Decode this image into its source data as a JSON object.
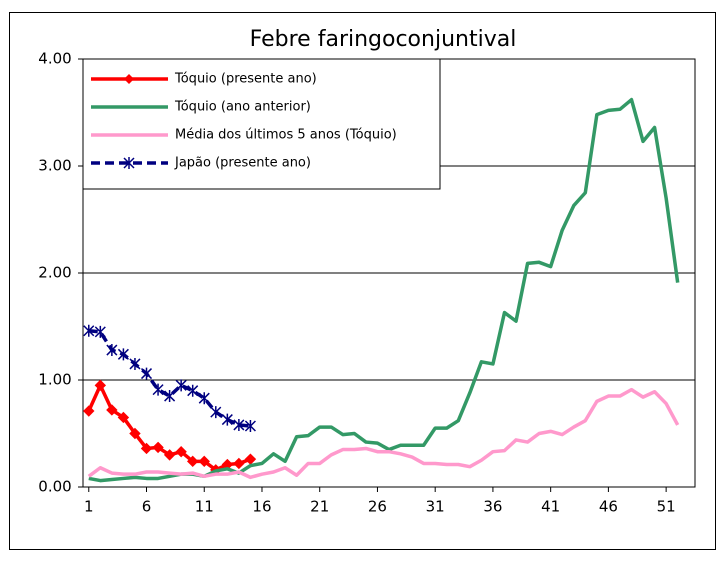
{
  "chart_data": {
    "type": "line",
    "title": "Febre faringoconjuntival",
    "categories": [
      1,
      null,
      null,
      null,
      null,
      6,
      null,
      null,
      null,
      null,
      11,
      null,
      null,
      null,
      null,
      16,
      null,
      null,
      null,
      null,
      21,
      null,
      null,
      null,
      null,
      26,
      null,
      null,
      null,
      null,
      31,
      null,
      null,
      null,
      null,
      36,
      null,
      null,
      null,
      null,
      41,
      null,
      null,
      null,
      null,
      46,
      null,
      null,
      null,
      null,
      51,
      null,
      null
    ],
    "series": [
      {
        "name": "Tóquio (presente ano)",
        "color": "#ff0000",
        "marker": "diamond",
        "dash": false,
        "values": [
          0.71,
          0.95,
          0.72,
          0.65,
          0.5,
          0.36,
          0.37,
          0.3,
          0.33,
          0.24,
          0.24,
          0.16,
          0.21,
          0.22,
          0.26,
          null,
          null,
          null,
          null,
          null,
          null,
          null,
          null,
          null,
          null,
          null,
          null,
          null,
          null,
          null,
          null,
          null,
          null,
          null,
          null,
          null,
          null,
          null,
          null,
          null,
          null,
          null,
          null,
          null,
          null,
          null,
          null,
          null,
          null,
          null,
          null,
          null,
          null
        ]
      },
      {
        "name": "Tóquio (ano anterior)",
        "color": "#339966",
        "marker": "none",
        "dash": false,
        "values": [
          0.08,
          0.06,
          0.07,
          0.08,
          0.09,
          0.08,
          0.08,
          0.1,
          0.12,
          0.12,
          0.1,
          0.15,
          0.17,
          0.13,
          0.2,
          0.22,
          0.31,
          0.24,
          0.47,
          0.48,
          0.56,
          0.56,
          0.49,
          0.5,
          0.42,
          0.41,
          0.35,
          0.39,
          0.39,
          0.39,
          0.55,
          0.55,
          0.62,
          0.88,
          1.17,
          1.15,
          1.63,
          1.55,
          2.09,
          2.1,
          2.06,
          2.4,
          2.63,
          2.75,
          3.48,
          3.52,
          3.53,
          3.62,
          3.23,
          3.36,
          2.7,
          1.91,
          null
        ]
      },
      {
        "name": "Média dos últimos 5 anos (Tóquio)",
        "color": "#ff99cc",
        "marker": "none",
        "dash": false,
        "values": [
          0.1,
          0.18,
          0.13,
          0.12,
          0.12,
          0.14,
          0.14,
          0.13,
          0.12,
          0.13,
          0.1,
          0.12,
          0.12,
          0.14,
          0.09,
          0.12,
          0.14,
          0.18,
          0.11,
          0.22,
          0.22,
          0.3,
          0.35,
          0.35,
          0.36,
          0.33,
          0.33,
          0.31,
          0.28,
          0.22,
          0.22,
          0.21,
          0.21,
          0.19,
          0.25,
          0.33,
          0.34,
          0.44,
          0.42,
          0.5,
          0.52,
          0.49,
          0.56,
          0.62,
          0.8,
          0.85,
          0.85,
          0.91,
          0.84,
          0.89,
          0.78,
          0.58,
          null
        ]
      },
      {
        "name": "Japão (presente ano)",
        "color": "#000080",
        "marker": "star",
        "dash": true,
        "values": [
          1.46,
          1.45,
          1.28,
          1.24,
          1.15,
          1.06,
          0.91,
          0.85,
          0.95,
          0.9,
          0.83,
          0.7,
          0.63,
          0.58,
          0.57,
          null,
          null,
          null,
          null,
          null,
          null,
          null,
          null,
          null,
          null,
          null,
          null,
          null,
          null,
          null,
          null,
          null,
          null,
          null,
          null,
          null,
          null,
          null,
          null,
          null,
          null,
          null,
          null,
          null,
          null,
          null,
          null,
          null,
          null,
          null,
          null,
          null,
          null
        ]
      }
    ],
    "ylim": [
      0,
      4
    ],
    "yticks": [
      {
        "value": 0,
        "label": "0.00"
      },
      {
        "value": 1,
        "label": "1.00"
      },
      {
        "value": 2,
        "label": "2.00"
      },
      {
        "value": 3,
        "label": "3.00"
      },
      {
        "value": 4,
        "label": "4.00"
      }
    ],
    "grid": true,
    "legend": "upper left"
  }
}
